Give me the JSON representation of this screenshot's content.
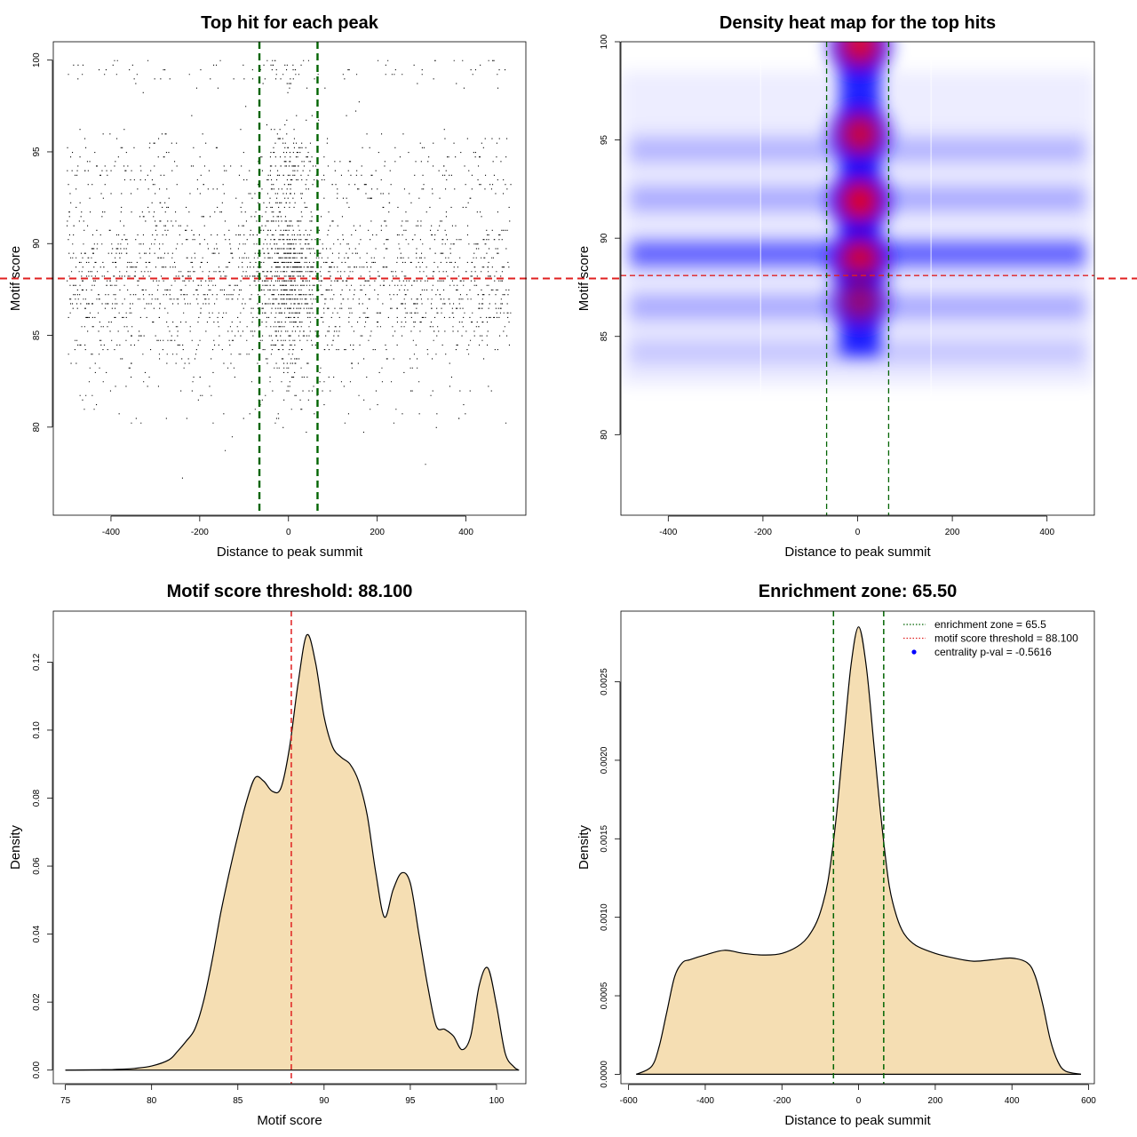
{
  "colors": {
    "threshold_line": "#e02020",
    "zone_line": "#006400",
    "density_fill": "#f5deb3",
    "heat_low": "#ffffff",
    "heat_mid": "#0000ff",
    "heat_high": "#ff0000",
    "point": "#000000"
  },
  "chart_data": [
    {
      "id": "scatter",
      "type": "scatter",
      "title": "Top hit for each peak",
      "xlabel": "Distance to peak summit",
      "ylabel": "Motif score",
      "xlim": [
        -530,
        535
      ],
      "ylim": [
        75.2,
        101
      ],
      "xticks": [
        -400,
        -200,
        0,
        200,
        400
      ],
      "yticks": [
        80,
        85,
        90,
        95,
        100
      ],
      "hlines": [
        88.1
      ],
      "vlines": [
        -65.5,
        65.5
      ],
      "points_note": "approx. several thousand top motif hits spanning x -500..500 and score 76..100, dense near x=0 and scores 85-95"
    },
    {
      "id": "heatmap",
      "type": "heatmap",
      "title": "Density heat map for the top hits",
      "xlabel": "Distance to peak summit",
      "ylabel": "Motif score",
      "xlim": [
        -500,
        500
      ],
      "ylim": [
        75.9,
        100
      ],
      "xticks": [
        -400,
        -200,
        0,
        200,
        400
      ],
      "yticks": [
        80,
        85,
        90,
        95,
        100
      ],
      "hlines": [
        88.1
      ],
      "vlines": [
        -65.5,
        65.5
      ],
      "hotspots": [
        {
          "x": 5,
          "y": 99.8,
          "intensity": 0.9
        },
        {
          "x": 5,
          "y": 95.3,
          "intensity": 0.85
        },
        {
          "x": 5,
          "y": 91.9,
          "intensity": 0.95
        },
        {
          "x": 5,
          "y": 88.9,
          "intensity": 0.9
        },
        {
          "x": 5,
          "y": 86.8,
          "intensity": 0.6
        }
      ],
      "bands": [
        {
          "y": 89.2,
          "intensity": 0.75
        },
        {
          "y": 92.0,
          "intensity": 0.35
        },
        {
          "y": 94.5,
          "intensity": 0.3
        },
        {
          "y": 86.5,
          "intensity": 0.35
        },
        {
          "y": 84.2,
          "intensity": 0.2
        }
      ]
    },
    {
      "id": "score_density",
      "type": "area",
      "title": "Motif score threshold: 88.100",
      "xlabel": "Motif score",
      "ylabel": "Density",
      "xlim": [
        74.3,
        101.7
      ],
      "ylim": [
        -0.004,
        0.135
      ],
      "xticks": [
        75,
        80,
        85,
        90,
        95,
        100
      ],
      "yticks": [
        0.0,
        0.02,
        0.04,
        0.06,
        0.08,
        0.1,
        0.12
      ],
      "ytick_labels": [
        "0.00",
        "0.02",
        "0.04",
        "0.06",
        "0.08",
        "0.10",
        "0.12"
      ],
      "vlines": [
        88.1
      ],
      "x": [
        75,
        77,
        78,
        79,
        80,
        81,
        81.5,
        82,
        82.5,
        83,
        83.5,
        84,
        84.5,
        85,
        85.5,
        86,
        86.5,
        87,
        87.5,
        88,
        88.5,
        89,
        89.5,
        90,
        90.5,
        91,
        91.5,
        92,
        92.5,
        93,
        93.5,
        94,
        94.5,
        95,
        95.5,
        96,
        96.5,
        97,
        97.5,
        98,
        98.5,
        99,
        99.5,
        100,
        100.5,
        101,
        101.3
      ],
      "y": [
        0.0,
        0.0001,
        0.0002,
        0.0005,
        0.0012,
        0.003,
        0.0055,
        0.0085,
        0.012,
        0.02,
        0.032,
        0.046,
        0.058,
        0.069,
        0.079,
        0.086,
        0.085,
        0.082,
        0.083,
        0.095,
        0.114,
        0.128,
        0.12,
        0.104,
        0.095,
        0.092,
        0.09,
        0.085,
        0.075,
        0.058,
        0.045,
        0.053,
        0.058,
        0.055,
        0.04,
        0.025,
        0.013,
        0.012,
        0.01,
        0.006,
        0.01,
        0.025,
        0.03,
        0.019,
        0.005,
        0.001,
        0.0
      ]
    },
    {
      "id": "distance_density",
      "type": "area",
      "title": "Enrichment zone: 65.50",
      "xlabel": "Distance to peak summit",
      "ylabel": "Density",
      "xlim": [
        -620,
        615
      ],
      "ylim": [
        -6e-05,
        0.00295
      ],
      "xticks": [
        -600,
        -400,
        -200,
        0,
        200,
        400,
        600
      ],
      "yticks": [
        0.0,
        0.0005,
        0.001,
        0.0015,
        0.002,
        0.0025
      ],
      "ytick_labels": [
        "0.0000",
        "0.0005",
        "0.0010",
        "0.0015",
        "0.0020",
        "0.0025"
      ],
      "vlines": [
        -65.5,
        65.5
      ],
      "x": [
        -580,
        -540,
        -520,
        -500,
        -480,
        -460,
        -440,
        -400,
        -350,
        -300,
        -250,
        -200,
        -150,
        -120,
        -100,
        -80,
        -60,
        -40,
        -20,
        0,
        20,
        40,
        60,
        80,
        100,
        120,
        150,
        200,
        250,
        300,
        350,
        400,
        440,
        460,
        480,
        500,
        520,
        540,
        580
      ],
      "y": [
        0.0,
        5e-05,
        0.00018,
        0.0004,
        0.00062,
        0.00071,
        0.00073,
        0.00076,
        0.00079,
        0.00077,
        0.00076,
        0.00077,
        0.00083,
        0.00092,
        0.00103,
        0.00123,
        0.0016,
        0.0021,
        0.0026,
        0.00285,
        0.0026,
        0.0021,
        0.0016,
        0.0012,
        0.001,
        0.00089,
        0.00082,
        0.00077,
        0.00074,
        0.00072,
        0.00073,
        0.00074,
        0.00071,
        0.00063,
        0.00045,
        0.00022,
        8e-05,
        2e-05,
        0.0
      ],
      "legend": [
        {
          "label": "enrichment zone = 65.5",
          "style": "dotted",
          "color": "#006400"
        },
        {
          "label": "motif score threshold = 88.100",
          "style": "dotted",
          "color": "#e02020"
        },
        {
          "label": "centrality p-val = -0.5616",
          "style": "point",
          "color": "#0000ff"
        }
      ],
      "legend_position": "top-right"
    }
  ]
}
